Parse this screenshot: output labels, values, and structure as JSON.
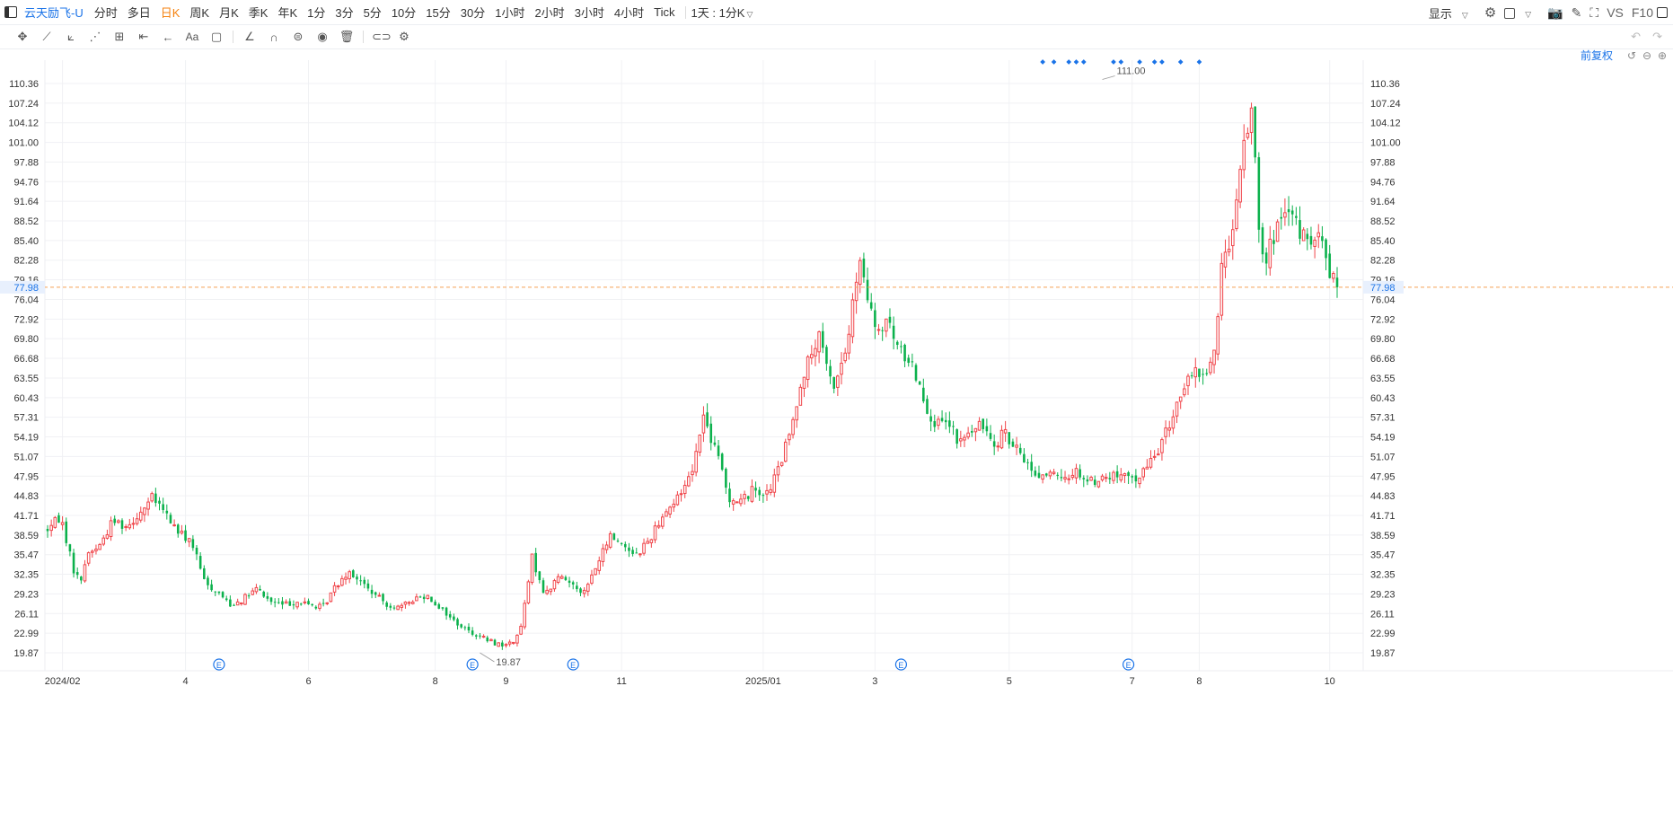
{
  "toolbar": {
    "symbol": "云天励飞-U",
    "periods": [
      "分时",
      "多日",
      "日K",
      "周K",
      "月K",
      "季K",
      "年K",
      "1分",
      "3分",
      "5分",
      "10分",
      "15分",
      "30分",
      "1小时",
      "2小时",
      "3小时",
      "4小时",
      "Tick"
    ],
    "active_period": "日K",
    "interval": "1天 : 1分K",
    "display_label": "显示",
    "vs_label": "VS",
    "f10_label": "F10"
  },
  "adjust_label": "前复权",
  "colors": {
    "up": "#f0454a",
    "down": "#0bb14c",
    "current_price_line": "#f5a056",
    "accent": "#1a73e8",
    "active_period": "#f5820f"
  },
  "chart_data": {
    "type": "candlestick",
    "current_price": "77.98",
    "y_ticks": [
      "110.36",
      "107.24",
      "104.12",
      "101.00",
      "97.88",
      "94.76",
      "91.64",
      "88.52",
      "85.40",
      "82.28",
      "79.16",
      "76.04",
      "72.92",
      "69.80",
      "66.68",
      "63.55",
      "60.43",
      "57.31",
      "54.19",
      "51.07",
      "47.95",
      "44.83",
      "41.71",
      "38.59",
      "35.47",
      "32.35",
      "29.23",
      "26.11",
      "22.99",
      "19.87"
    ],
    "ylim": [
      17.5,
      113
    ],
    "x_labels": [
      "2024/02",
      "4",
      "6",
      "8",
      "9",
      "11",
      "2025/01",
      "3",
      "5",
      "7",
      "8",
      "10"
    ],
    "x_label_idx": [
      4,
      37,
      70,
      104,
      123,
      154,
      192,
      222,
      258,
      291,
      309,
      344
    ],
    "n_bars": 347,
    "annotations": [
      {
        "label": "111.00",
        "value": 111.0,
        "bar": 322
      },
      {
        "label": "19.87",
        "value": 19.87,
        "bar": 132
      }
    ],
    "event_markers": {
      "label": "E",
      "bars": [
        52,
        130,
        161,
        261,
        330
      ]
    },
    "top_markers": [
      304,
      308,
      312,
      314,
      316,
      326,
      328,
      334,
      338,
      340,
      346,
      352
    ],
    "anchors": [
      [
        0,
        39.5
      ],
      [
        4,
        41.5
      ],
      [
        8,
        33
      ],
      [
        10,
        31
      ],
      [
        12,
        35.5
      ],
      [
        16,
        37
      ],
      [
        20,
        41
      ],
      [
        24,
        40
      ],
      [
        28,
        42
      ],
      [
        32,
        44.5
      ],
      [
        36,
        42
      ],
      [
        40,
        39
      ],
      [
        44,
        37.5
      ],
      [
        48,
        31
      ],
      [
        52,
        29.5
      ],
      [
        56,
        27.5
      ],
      [
        60,
        28.5
      ],
      [
        64,
        30
      ],
      [
        68,
        28
      ],
      [
        72,
        27.5
      ],
      [
        76,
        28
      ],
      [
        80,
        27.5
      ],
      [
        84,
        27
      ],
      [
        88,
        30.5
      ],
      [
        92,
        33
      ],
      [
        96,
        31
      ],
      [
        100,
        29
      ],
      [
        104,
        27.5
      ],
      [
        108,
        27
      ],
      [
        112,
        28.5
      ],
      [
        116,
        29
      ],
      [
        120,
        27
      ],
      [
        124,
        25
      ],
      [
        128,
        23.5
      ],
      [
        132,
        22.5
      ],
      [
        136,
        21.5
      ],
      [
        140,
        21
      ],
      [
        144,
        22.5
      ],
      [
        146,
        28
      ],
      [
        148,
        35
      ],
      [
        150,
        32
      ],
      [
        152,
        29
      ],
      [
        156,
        32
      ],
      [
        160,
        31
      ],
      [
        164,
        29.5
      ],
      [
        168,
        34
      ],
      [
        172,
        38.5
      ],
      [
        176,
        37
      ],
      [
        180,
        35.5
      ],
      [
        184,
        38
      ],
      [
        188,
        42
      ],
      [
        192,
        44
      ],
      [
        196,
        48
      ],
      [
        198,
        51
      ],
      [
        200,
        58
      ],
      [
        202,
        55
      ],
      [
        206,
        49
      ],
      [
        208,
        44.5
      ],
      [
        212,
        44
      ],
      [
        216,
        46
      ],
      [
        220,
        45
      ],
      [
        224,
        50
      ],
      [
        228,
        57
      ],
      [
        230,
        63
      ],
      [
        234,
        68
      ],
      [
        236,
        70
      ],
      [
        238,
        65
      ],
      [
        240,
        62
      ],
      [
        244,
        68
      ],
      [
        246,
        75
      ],
      [
        248,
        82
      ],
      [
        250,
        77
      ],
      [
        252,
        73
      ],
      [
        254,
        70
      ],
      [
        256,
        73
      ],
      [
        260,
        68
      ],
      [
        264,
        66
      ],
      [
        266,
        63
      ],
      [
        270,
        57
      ],
      [
        272,
        56
      ],
      [
        276,
        56
      ],
      [
        278,
        53
      ],
      [
        282,
        55
      ],
      [
        286,
        56
      ],
      [
        290,
        53
      ],
      [
        292,
        56
      ],
      [
        294,
        53
      ],
      [
        298,
        51
      ],
      [
        302,
        48
      ],
      [
        306,
        48.5
      ],
      [
        310,
        47
      ],
      [
        314,
        49
      ],
      [
        318,
        47
      ],
      [
        322,
        47.5
      ],
      [
        326,
        48
      ],
      [
        330,
        47.5
      ],
      [
        334,
        48
      ],
      [
        338,
        51
      ],
      [
        342,
        55
      ],
      [
        346,
        61
      ],
      [
        350,
        64
      ],
      [
        354,
        64.5
      ],
      [
        357,
        68
      ],
      [
        358,
        78
      ],
      [
        360,
        85
      ],
      [
        362,
        86
      ],
      [
        364,
        94
      ],
      [
        366,
        103
      ],
      [
        368,
        106
      ],
      [
        370,
        89
      ],
      [
        372,
        82
      ],
      [
        376,
        88
      ],
      [
        380,
        89
      ],
      [
        384,
        86
      ],
      [
        386,
        84
      ],
      [
        388,
        86
      ],
      [
        390,
        84
      ],
      [
        392,
        80
      ],
      [
        394,
        78
      ]
    ]
  }
}
